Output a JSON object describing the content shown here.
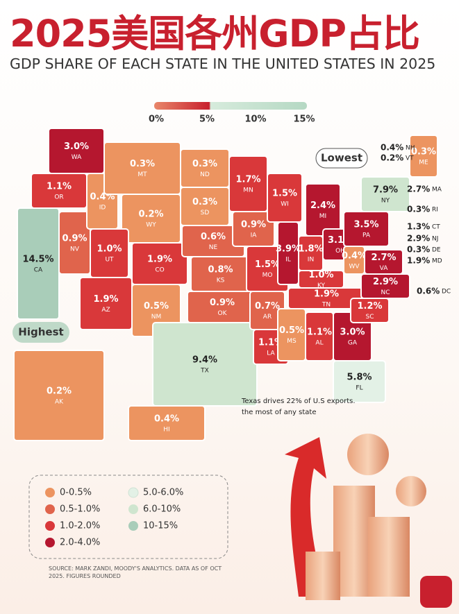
{
  "title": "2025美国各州GDP占比",
  "subtitle": "GDP SHARE OF EACH STATE IN THE UNITED STATES IN 2025",
  "scale": {
    "labels": [
      "0%",
      "5%",
      "10%",
      "15%"
    ]
  },
  "callouts": {
    "lowest": "Lowest",
    "highest": "Highest"
  },
  "states": [
    {
      "abbr": "CA",
      "value": "14.5%"
    },
    {
      "abbr": "WA",
      "value": "3.0%"
    },
    {
      "abbr": "OR",
      "value": "1.1%"
    },
    {
      "abbr": "NV",
      "value": "0.9%"
    },
    {
      "abbr": "ID",
      "value": "0.4%"
    },
    {
      "abbr": "MT",
      "value": "0.3%"
    },
    {
      "abbr": "WY",
      "value": "0.2%"
    },
    {
      "abbr": "UT",
      "value": "1.0%"
    },
    {
      "abbr": "CO",
      "value": "1.9%"
    },
    {
      "abbr": "AZ",
      "value": "1.9%"
    },
    {
      "abbr": "NM",
      "value": "0.5%"
    },
    {
      "abbr": "ND",
      "value": "0.3%"
    },
    {
      "abbr": "SD",
      "value": "0.3%"
    },
    {
      "abbr": "NE",
      "value": "0.6%"
    },
    {
      "abbr": "KS",
      "value": "0.8%"
    },
    {
      "abbr": "OK",
      "value": "0.9%"
    },
    {
      "abbr": "TX",
      "value": "9.4%"
    },
    {
      "abbr": "MN",
      "value": "1.7%"
    },
    {
      "abbr": "IA",
      "value": "0.9%"
    },
    {
      "abbr": "MO",
      "value": "1.5%"
    },
    {
      "abbr": "AR",
      "value": "0.7%"
    },
    {
      "abbr": "LA",
      "value": "1.1%"
    },
    {
      "abbr": "WI",
      "value": "1.5%"
    },
    {
      "abbr": "IL",
      "value": "3.9%"
    },
    {
      "abbr": "MI",
      "value": "2.4%"
    },
    {
      "abbr": "IN",
      "value": "1.8%"
    },
    {
      "abbr": "OH",
      "value": "3.1%"
    },
    {
      "abbr": "KY",
      "value": "1.0%"
    },
    {
      "abbr": "TN",
      "value": "1.9%"
    },
    {
      "abbr": "MS",
      "value": "0.5%"
    },
    {
      "abbr": "AL",
      "value": "1.1%"
    },
    {
      "abbr": "GA",
      "value": "3.0%"
    },
    {
      "abbr": "FL",
      "value": "5.8%"
    },
    {
      "abbr": "SC",
      "value": "1.2%"
    },
    {
      "abbr": "NC",
      "value": "2.9%"
    },
    {
      "abbr": "WV",
      "value": "0.4%"
    },
    {
      "abbr": "VA",
      "value": "2.7%"
    },
    {
      "abbr": "PA",
      "value": "3.5%"
    },
    {
      "abbr": "NY",
      "value": "7.9%"
    },
    {
      "abbr": "ME",
      "value": "0.3%"
    },
    {
      "abbr": "AK",
      "value": "0.2%"
    },
    {
      "abbr": "HI",
      "value": "0.4%"
    }
  ],
  "small_states": [
    {
      "abbr": "NH",
      "value": "0.4%"
    },
    {
      "abbr": "VT",
      "value": "0.2%"
    },
    {
      "abbr": "MA",
      "value": "2.7%"
    },
    {
      "abbr": "RI",
      "value": "0.3%"
    },
    {
      "abbr": "CT",
      "value": "1.3%"
    },
    {
      "abbr": "NJ",
      "value": "2.9%"
    },
    {
      "abbr": "DE",
      "value": "0.3%"
    },
    {
      "abbr": "MD",
      "value": "1.9%"
    },
    {
      "abbr": "DC",
      "value": "0.6%"
    }
  ],
  "note": [
    "Texas drives 22% of U.S exports.",
    "the most of any state"
  ],
  "legend": [
    {
      "label": "0-0.5%",
      "color": "#ec9460"
    },
    {
      "label": "0.5-1.0%",
      "color": "#e0644c"
    },
    {
      "label": "1.0-2.0%",
      "color": "#d9383a"
    },
    {
      "label": "2.0-4.0%",
      "color": "#b5172f"
    },
    {
      "label": "5.0-6.0%",
      "color": "#e3f1e6"
    },
    {
      "label": "6.0-10%",
      "color": "#cfe5cf"
    },
    {
      "label": "10-15%",
      "color": "#a9cdb9"
    }
  ],
  "source": "SOURCE:  MARK ZANDI, MOODY'S ANALYTICS. DATA AS OF OCT 2025. FIGURES ROUNDED"
}
